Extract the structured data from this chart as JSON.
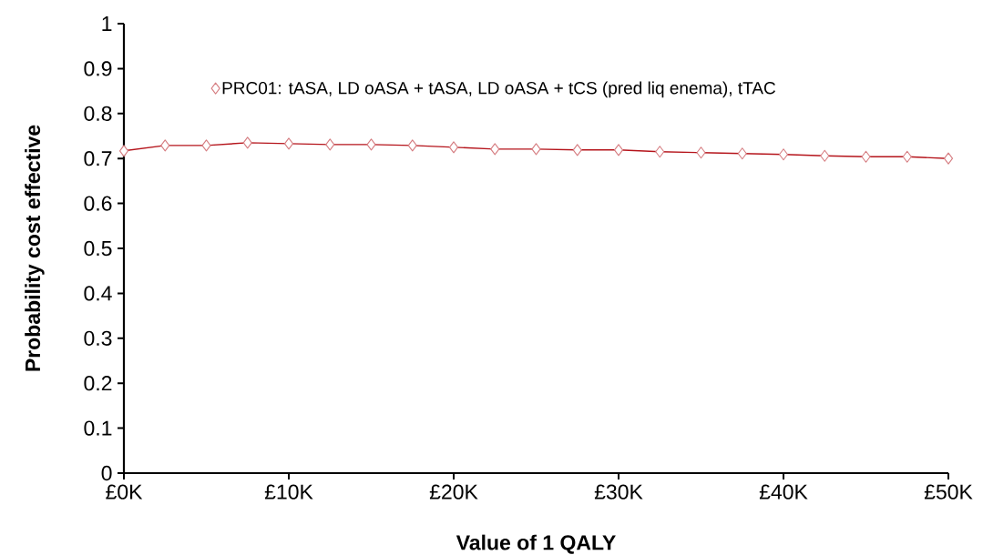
{
  "chart_data": {
    "type": "line",
    "xlabel": "Value of 1 QALY",
    "ylabel": "Probability cost effective",
    "x": [
      0,
      2500,
      5000,
      7500,
      10000,
      12500,
      15000,
      17500,
      20000,
      22500,
      25000,
      27500,
      30000,
      32500,
      35000,
      37500,
      40000,
      42500,
      45000,
      47500,
      50000
    ],
    "series": [
      {
        "name": "PRC01: tASA, LD oASA + tASA, LD oASA + tCS (pred liq enema), tTAC",
        "color": "#b5141b",
        "values": [
          0.717,
          0.729,
          0.729,
          0.735,
          0.733,
          0.731,
          0.731,
          0.729,
          0.725,
          0.721,
          0.721,
          0.719,
          0.719,
          0.715,
          0.713,
          0.711,
          0.709,
          0.706,
          0.704,
          0.704,
          0.7
        ]
      }
    ],
    "xlim": [
      0,
      50000
    ],
    "ylim": [
      0,
      1
    ],
    "xticks": [
      {
        "value": 0,
        "label": "£0K"
      },
      {
        "value": 10000,
        "label": "£10K"
      },
      {
        "value": 20000,
        "label": "£20K"
      },
      {
        "value": 30000,
        "label": "£30K"
      },
      {
        "value": 40000,
        "label": "£40K"
      },
      {
        "value": 50000,
        "label": "£50K"
      }
    ],
    "yticks": [
      0,
      0.1,
      0.2,
      0.3,
      0.4,
      0.5,
      0.6,
      0.7,
      0.8,
      0.9,
      1
    ],
    "marker": "diamond",
    "line_style": "solid",
    "legend": "top",
    "grid": false
  }
}
